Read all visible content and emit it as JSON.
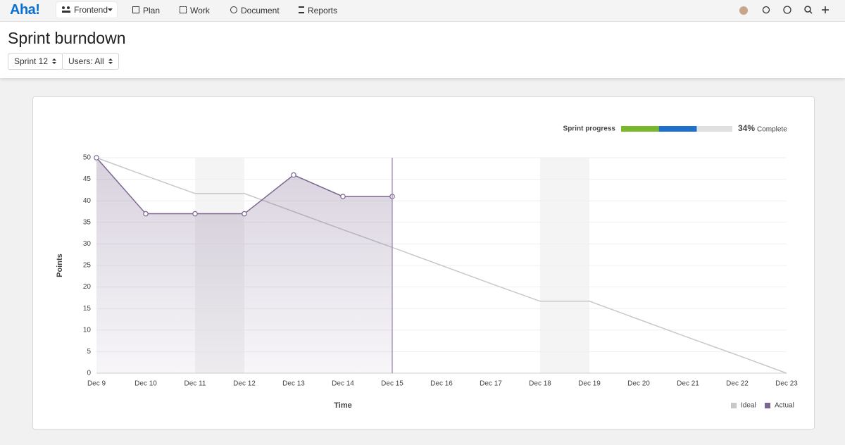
{
  "nav": {
    "logo": "Aha!",
    "workspace": "Frontend",
    "items": [
      "Plan",
      "Work",
      "Document",
      "Reports"
    ]
  },
  "header": {
    "title": "Sprint burndown",
    "filters": [
      "Sprint 12",
      "Users: All"
    ]
  },
  "chart_data": {
    "type": "line",
    "progress": {
      "label": "Sprint progress",
      "value": 34,
      "value_label": "34%",
      "suffix": "Complete",
      "segments": [
        {
          "color": "#78b82a",
          "value": 34
        },
        {
          "color": "#1f6fcc",
          "value": 34
        }
      ],
      "track_color": "#e0e0e0"
    },
    "categories": [
      "Dec 9",
      "Dec 10",
      "Dec 11",
      "Dec 12",
      "Dec 13",
      "Dec 14",
      "Dec 15",
      "Dec 16",
      "Dec 17",
      "Dec 18",
      "Dec 19",
      "Dec 20",
      "Dec 21",
      "Dec 22",
      "Dec 23"
    ],
    "series": [
      {
        "name": "Ideal",
        "color": "#c8c8c8",
        "values": [
          50,
          45.8,
          41.7,
          41.7,
          37.5,
          33.3,
          29.2,
          25,
          20.8,
          16.7,
          16.7,
          12.5,
          8.3,
          4.2,
          0
        ]
      },
      {
        "name": "Actual",
        "color": "#7b6690",
        "values": [
          50,
          37,
          37,
          37,
          46,
          41,
          41,
          null,
          null,
          null,
          null,
          null,
          null,
          null,
          null
        ]
      }
    ],
    "weekends": [
      [
        "Dec 11",
        "Dec 12"
      ],
      [
        "Dec 18",
        "Dec 19"
      ]
    ],
    "today": "Dec 15",
    "xlabel": "Time",
    "ylabel": "Points",
    "ylim": [
      0,
      50
    ],
    "yticks": [
      0,
      5,
      10,
      15,
      20,
      25,
      30,
      35,
      40,
      45,
      50
    ],
    "grid": true,
    "legend": "bottom-right"
  }
}
